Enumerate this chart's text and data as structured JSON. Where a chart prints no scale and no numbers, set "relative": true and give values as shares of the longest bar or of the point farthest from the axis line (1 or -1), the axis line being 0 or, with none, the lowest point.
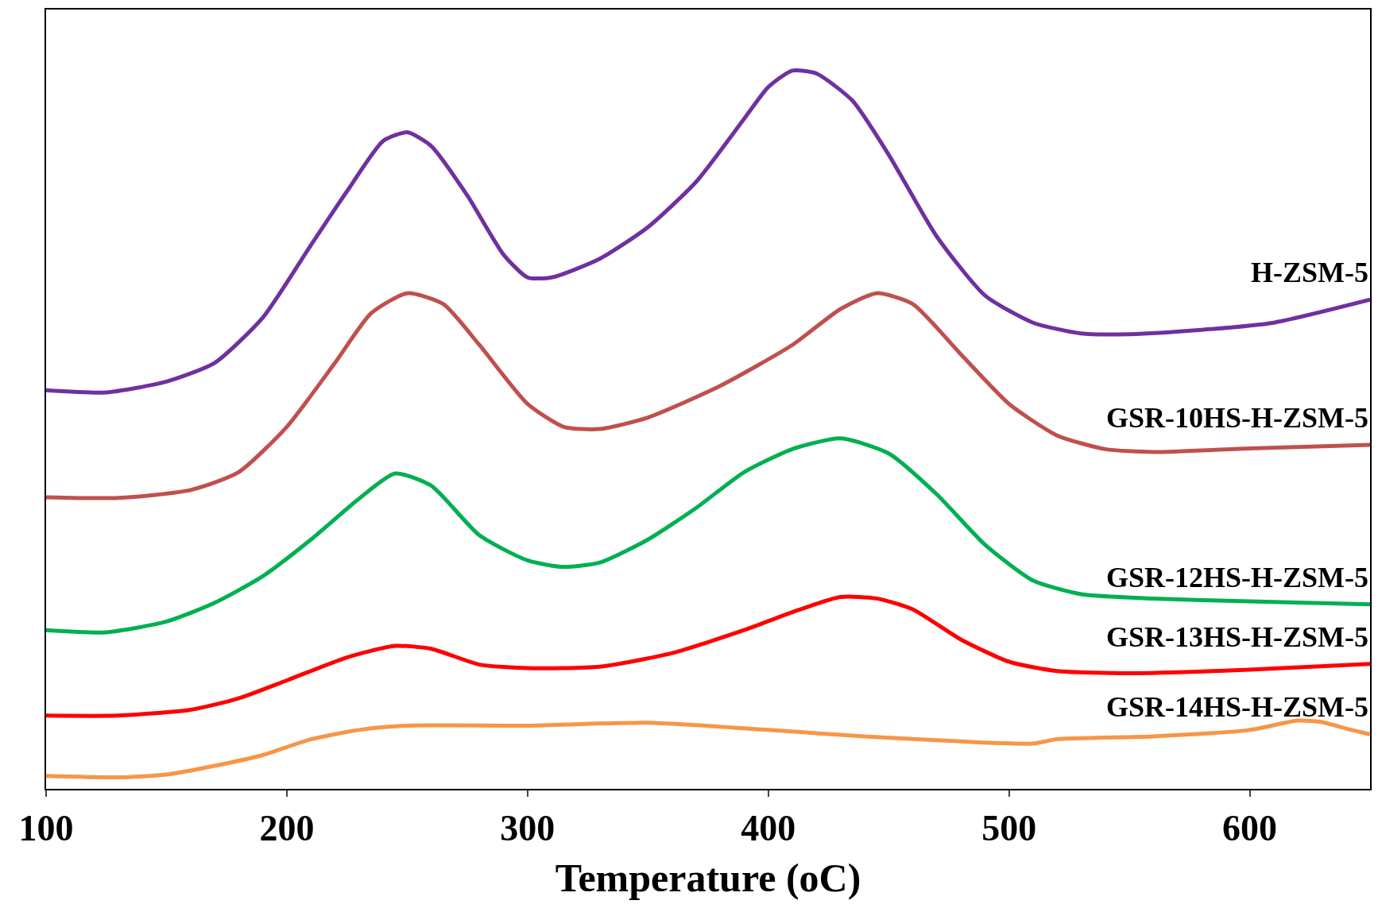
{
  "chart_data": {
    "type": "line",
    "relative": true,
    "xlabel": "Temperature (oC)",
    "xlim": [
      100,
      650
    ],
    "xticks": [
      100,
      200,
      300,
      400,
      500,
      600
    ],
    "legend": false,
    "marker": "none",
    "line_style": "solid",
    "series": [
      {
        "name": "H-ZSM-5",
        "color": "#7030a0",
        "x": [
          100,
          125,
          150,
          170,
          190,
          210,
          225,
          240,
          250,
          260,
          275,
          290,
          300,
          310,
          330,
          350,
          370,
          390,
          400,
          410,
          420,
          435,
          450,
          470,
          490,
          510,
          530,
          550,
          580,
          610,
          650
        ],
        "values": [
          0.555,
          0.552,
          0.567,
          0.593,
          0.656,
          0.757,
          0.832,
          0.902,
          0.914,
          0.895,
          0.826,
          0.744,
          0.712,
          0.712,
          0.738,
          0.782,
          0.845,
          0.933,
          0.977,
          1,
          0.996,
          0.958,
          0.883,
          0.769,
          0.687,
          0.649,
          0.634,
          0.633,
          0.639,
          0.649,
          0.681
        ]
      },
      {
        "name": "GSR-10HS-H-ZSM-5",
        "color": "#c0504d",
        "x": [
          100,
          130,
          160,
          180,
          200,
          220,
          235,
          250,
          265,
          280,
          300,
          315,
          330,
          350,
          380,
          410,
          430,
          445,
          460,
          480,
          500,
          520,
          540,
          560,
          600,
          650
        ],
        "values": [
          0.406,
          0.405,
          0.416,
          0.441,
          0.504,
          0.593,
          0.662,
          0.69,
          0.675,
          0.618,
          0.536,
          0.504,
          0.501,
          0.517,
          0.561,
          0.618,
          0.668,
          0.69,
          0.675,
          0.605,
          0.536,
          0.492,
          0.473,
          0.469,
          0.474,
          0.479
        ]
      },
      {
        "name": "GSR-12HS-H-ZSM-5",
        "color": "#00b050",
        "x": [
          100,
          125,
          150,
          170,
          190,
          210,
          230,
          245,
          260,
          280,
          300,
          315,
          330,
          350,
          370,
          390,
          410,
          430,
          450,
          470,
          490,
          510,
          530,
          560,
          600,
          650
        ],
        "values": [
          0.221,
          0.218,
          0.233,
          0.259,
          0.296,
          0.347,
          0.404,
          0.439,
          0.422,
          0.353,
          0.318,
          0.309,
          0.315,
          0.347,
          0.391,
          0.441,
          0.473,
          0.488,
          0.467,
          0.41,
          0.34,
          0.29,
          0.271,
          0.265,
          0.261,
          0.257
        ]
      },
      {
        "name": "GSR-13HS-H-ZSM-5",
        "color": "#ff0000",
        "x": [
          100,
          130,
          160,
          180,
          200,
          225,
          245,
          260,
          280,
          300,
          330,
          360,
          390,
          410,
          430,
          445,
          460,
          480,
          500,
          520,
          550,
          600,
          650
        ],
        "values": [
          0.102,
          0.102,
          0.11,
          0.126,
          0.151,
          0.183,
          0.199,
          0.195,
          0.173,
          0.168,
          0.17,
          0.189,
          0.221,
          0.246,
          0.267,
          0.265,
          0.25,
          0.208,
          0.177,
          0.164,
          0.161,
          0.166,
          0.174
        ]
      },
      {
        "name": "GSR-14HS-H-ZSM-5",
        "color": "#f79646",
        "x": [
          100,
          130,
          150,
          170,
          190,
          210,
          230,
          250,
          300,
          350,
          400,
          440,
          480,
          510,
          520,
          560,
          600,
          620,
          630,
          640,
          650
        ],
        "values": [
          0.018,
          0.016,
          0.02,
          0.032,
          0.047,
          0.069,
          0.082,
          0.088,
          0.088,
          0.092,
          0.082,
          0.073,
          0.066,
          0.063,
          0.069,
          0.073,
          0.082,
          0.095,
          0.093,
          0.084,
          0.076
        ]
      }
    ]
  }
}
